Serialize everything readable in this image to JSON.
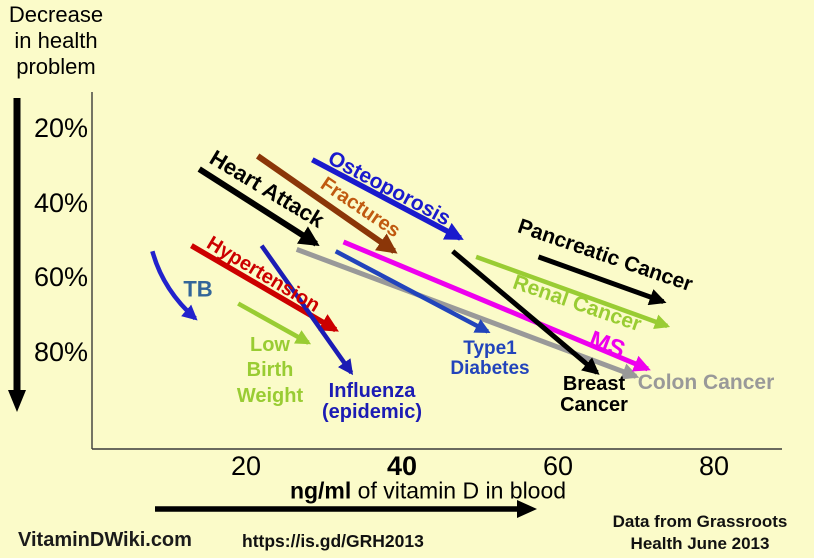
{
  "slide": {
    "title_lines": [
      "Decrease",
      "in health",
      "problem"
    ],
    "background_color": "#fbfbc9"
  },
  "y_axis": {
    "ticks": [
      {
        "label": "20%",
        "value": 20
      },
      {
        "label": "40%",
        "value": 40
      },
      {
        "label": "60%",
        "value": 60
      },
      {
        "label": "80%",
        "value": 80
      }
    ]
  },
  "x_axis": {
    "title_bold": "ng/ml",
    "title_rest": " of vitamin D in blood",
    "ticks": [
      {
        "label": "20",
        "value": 20,
        "bold": false
      },
      {
        "label": "40",
        "value": 40,
        "bold": true
      },
      {
        "label": "60",
        "value": 60,
        "bold": false
      },
      {
        "label": "80",
        "value": 80,
        "bold": false
      }
    ]
  },
  "footer": {
    "brand": "VitaminDWiki.com",
    "link": "https://is.gd/GRH2013",
    "source_lines": [
      "Data from Grassroots",
      "Health June 2013"
    ]
  },
  "chart_data": {
    "type": "line",
    "variant": "trend-arrows",
    "title": "Decrease in health problem vs ng/ml of vitamin D in blood",
    "xlabel": "ng/ml of vitamin D in blood",
    "ylabel": "Decrease in health problem (%)",
    "x_range": [
      0,
      88
    ],
    "y_range": [
      20,
      80
    ],
    "y_direction": "down-means-larger-decrease",
    "grid": false,
    "legend_position": "labels-on-arrows",
    "series": [
      {
        "name": "Heart Attack",
        "label_lines": [
          "Heart Attack"
        ],
        "color": "#000000",
        "x": [
          14,
          29
        ],
        "y": [
          31,
          51
        ]
      },
      {
        "name": "Fractures",
        "label_lines": [
          "Fractures"
        ],
        "color": "#8b3608",
        "label_color": "#c05a10",
        "x": [
          21.5,
          39
        ],
        "y": [
          27.5,
          53
        ]
      },
      {
        "name": "Osteoporosis",
        "label_lines": [
          "Osteoporosis"
        ],
        "color": "#1a1acd",
        "x": [
          28.5,
          47.5
        ],
        "y": [
          28.5,
          49.5
        ]
      },
      {
        "name": "Hypertension",
        "label_lines": [
          "Hypertension"
        ],
        "color": "#cc0000",
        "x": [
          13,
          31.5
        ],
        "y": [
          51.5,
          74
        ]
      },
      {
        "name": "TB",
        "label_lines": [
          "TB"
        ],
        "color": "#2222cc",
        "label_color": "#336699",
        "x": [
          8,
          13.5
        ],
        "y": [
          53,
          71
        ]
      },
      {
        "name": "Low Birth Weight",
        "label_lines": [
          "Low",
          "Birth",
          "Weight"
        ],
        "color": "#99cc33",
        "x": [
          19,
          28
        ],
        "y": [
          67,
          77.5
        ]
      },
      {
        "name": "Influenza (epidemic)",
        "label_lines": [
          "Influenza",
          "(epidemic)"
        ],
        "color": "#1c1cb4",
        "x": [
          22,
          33.5
        ],
        "y": [
          51.5,
          85.5
        ]
      },
      {
        "name": "Type1 Diabetes",
        "label_lines": [
          "Type1",
          "Diabetes"
        ],
        "color": "#2244bb",
        "x": [
          31.5,
          51
        ],
        "y": [
          53,
          74.5
        ]
      },
      {
        "name": "Breast Cancer",
        "label_lines": [
          "Breast",
          "Cancer"
        ],
        "color": "#000000",
        "x": [
          46.5,
          65
        ],
        "y": [
          53,
          85.5
        ]
      },
      {
        "name": "MS",
        "label_lines": [
          "MS"
        ],
        "color": "#ee00ee",
        "x": [
          32.5,
          71.5
        ],
        "y": [
          50.5,
          84.5
        ]
      },
      {
        "name": "Colon Cancer",
        "label_lines": [
          "Colon Cancer"
        ],
        "color": "#999999",
        "x": [
          26.5,
          70
        ],
        "y": [
          52.5,
          86.5
        ]
      },
      {
        "name": "Pancreatic Cancer",
        "label_lines": [
          "Pancreatic Cancer"
        ],
        "color": "#000000",
        "x": [
          57.5,
          73.5
        ],
        "y": [
          54.5,
          66.5
        ]
      },
      {
        "name": "Renal Cancer",
        "label_lines": [
          "Renal Cancer"
        ],
        "color": "#99cc33",
        "x": [
          49.5,
          74
        ],
        "y": [
          54.5,
          73
        ]
      }
    ]
  }
}
